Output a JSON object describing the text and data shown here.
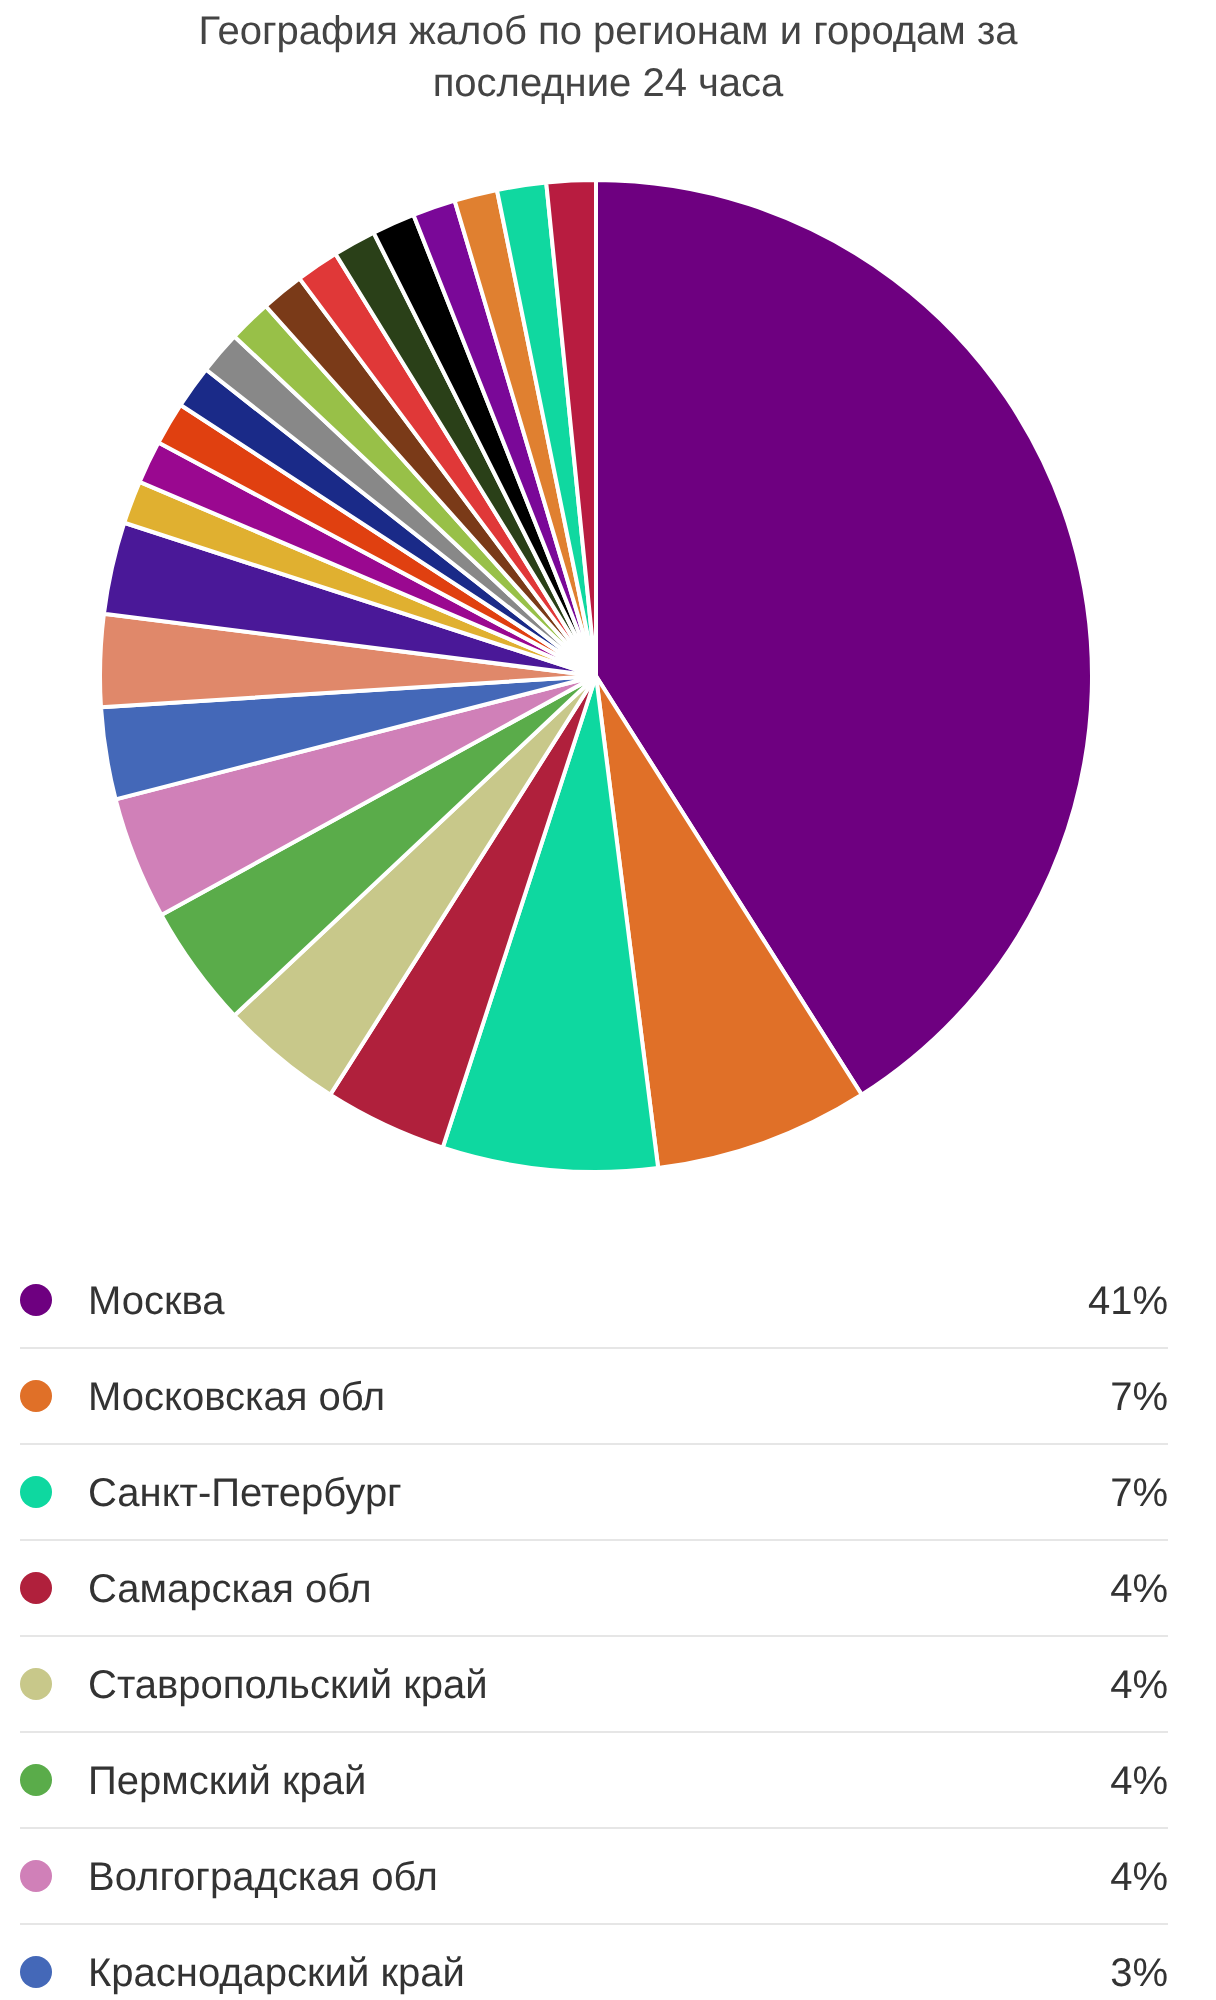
{
  "chart_data": {
    "type": "pie",
    "title": "География жалоб по регионам и городам за последние 24 часа",
    "categories": [
      "Москва",
      "Московская обл",
      "Санкт-Петербург",
      "Самарская обл",
      "Ставропольский край",
      "Пермский край",
      "Волгоградская обл",
      "Краснодарский край",
      null,
      null,
      null,
      null,
      null,
      null,
      null,
      null,
      null,
      null,
      null,
      null,
      null,
      null,
      null,
      null
    ],
    "values": [
      41,
      7,
      7,
      4,
      4,
      4,
      4,
      3,
      3,
      3,
      1.4,
      1.4,
      1.4,
      1.4,
      1.4,
      1.4,
      1.4,
      1.4,
      1.4,
      1.4,
      1.4,
      1.4,
      1.6,
      1.6
    ],
    "value_labels": [
      "41%",
      "7%",
      "7%",
      "4%",
      "4%",
      "4%",
      "4%",
      "3%",
      null,
      null,
      null,
      null,
      null,
      null,
      null,
      null,
      null,
      null,
      null,
      null,
      null,
      null,
      null,
      null
    ],
    "colors": [
      "#6e0080",
      "#e07028",
      "#0ed8a0",
      "#b0203c",
      "#c8c88a",
      "#5aac4a",
      "#d080b8",
      "#4468b8",
      "#e0886a",
      "#4a1898",
      "#e0b030",
      "#9a0890",
      "#e04010",
      "#1a2a88",
      "#888888",
      "#98c048",
      "#7a3a18",
      "#e03838",
      "#2a4018",
      "#000000",
      "#7a0898",
      "#e08030",
      "#10d8a0",
      "#b81c40"
    ],
    "legend": "bottom"
  }
}
